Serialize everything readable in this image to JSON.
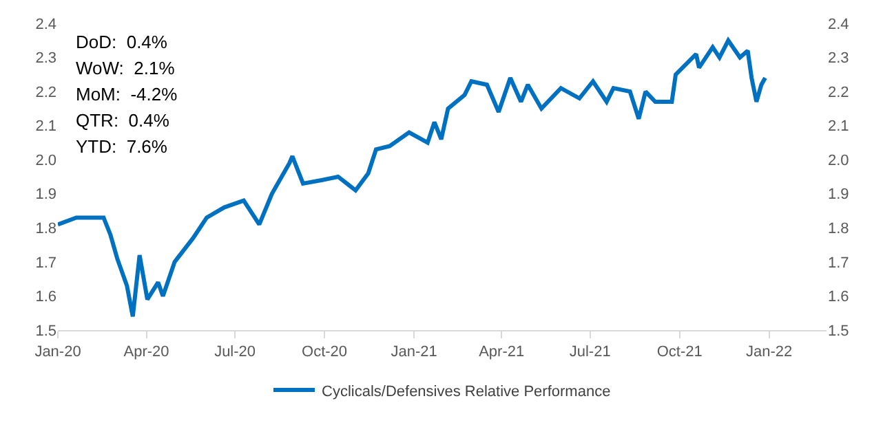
{
  "chart_data": {
    "type": "line",
    "x": [
      "2020-01-01",
      "2020-01-20",
      "2020-02-17",
      "2020-02-24",
      "2020-03-02",
      "2020-03-12",
      "2020-03-18",
      "2020-03-25",
      "2020-04-02",
      "2020-04-13",
      "2020-04-18",
      "2020-04-30",
      "2020-05-19",
      "2020-06-02",
      "2020-06-20",
      "2020-07-10",
      "2020-07-26",
      "2020-08-08",
      "2020-08-26",
      "2020-08-29",
      "2020-09-09",
      "2020-09-28",
      "2020-10-15",
      "2020-11-02",
      "2020-11-15",
      "2020-11-23",
      "2020-12-07",
      "2020-12-27",
      "2021-01-15",
      "2021-01-22",
      "2021-01-29",
      "2021-02-05",
      "2021-02-22",
      "2021-03-01",
      "2021-03-17",
      "2021-03-29",
      "2021-04-10",
      "2021-04-21",
      "2021-04-28",
      "2021-05-12",
      "2021-06-01",
      "2021-06-20",
      "2021-07-04",
      "2021-07-18",
      "2021-07-25",
      "2021-08-11",
      "2021-08-20",
      "2021-08-27",
      "2021-09-06",
      "2021-09-23",
      "2021-09-27",
      "2021-10-18",
      "2021-10-21",
      "2021-11-04",
      "2021-11-11",
      "2021-11-20",
      "2021-12-02",
      "2021-12-10",
      "2021-12-14",
      "2021-12-19",
      "2021-12-24",
      "2021-12-28"
    ],
    "series": [
      {
        "name": "Cyclicals/Defensives Relative Performance",
        "color": "#0070c0",
        "values": [
          1.81,
          1.83,
          1.83,
          1.78,
          1.71,
          1.63,
          1.54,
          1.72,
          1.59,
          1.64,
          1.6,
          1.7,
          1.77,
          1.83,
          1.86,
          1.88,
          1.81,
          1.9,
          1.99,
          2.01,
          1.93,
          1.94,
          1.95,
          1.91,
          1.96,
          2.03,
          2.04,
          2.08,
          2.05,
          2.11,
          2.06,
          2.15,
          2.19,
          2.23,
          2.22,
          2.14,
          2.24,
          2.17,
          2.22,
          2.15,
          2.21,
          2.18,
          2.23,
          2.17,
          2.21,
          2.2,
          2.12,
          2.2,
          2.17,
          2.17,
          2.25,
          2.31,
          2.27,
          2.33,
          2.3,
          2.35,
          2.3,
          2.32,
          2.24,
          2.17,
          2.22,
          2.24
        ]
      }
    ],
    "xlim": [
      "2020-01-01",
      "2022-03-01"
    ],
    "xticks": [
      {
        "value": "2020-01-01",
        "label": "Jan-20"
      },
      {
        "value": "2020-04-01",
        "label": "Apr-20"
      },
      {
        "value": "2020-07-01",
        "label": "Jul-20"
      },
      {
        "value": "2020-10-01",
        "label": "Oct-20"
      },
      {
        "value": "2021-01-01",
        "label": "Jan-21"
      },
      {
        "value": "2021-04-01",
        "label": "Apr-21"
      },
      {
        "value": "2021-07-01",
        "label": "Jul-21"
      },
      {
        "value": "2021-10-01",
        "label": "Oct-21"
      },
      {
        "value": "2022-01-01",
        "label": "Jan-22"
      }
    ],
    "ylim": [
      1.5,
      2.4
    ],
    "yticks": [
      1.5,
      1.6,
      1.7,
      1.8,
      1.9,
      {
        "value": 2,
        "label": "2.0"
      },
      2.1,
      2.2,
      2.3,
      2.4
    ],
    "y2lim": [
      1.5,
      2.4
    ],
    "y2ticks": [
      1.5,
      1.6,
      1.7,
      1.8,
      1.9,
      {
        "value": 2,
        "label": "2.0"
      },
      2.1,
      2.2,
      2.3,
      2.4
    ],
    "annotations": [
      "DoD:  0.4%",
      "WoW:  2.1%",
      "MoM:  -4.2%",
      "QTR:  0.4%",
      "YTD:  7.6%"
    ],
    "legend": "bottom",
    "marker": "none",
    "line_style": "solid"
  }
}
